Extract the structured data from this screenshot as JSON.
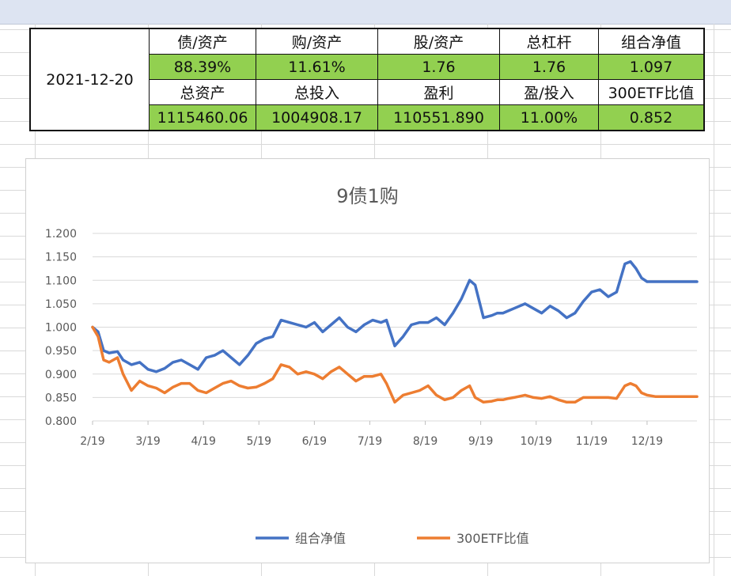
{
  "summary": {
    "date": "2021-12-20",
    "header_row1": [
      "债/资产",
      "购/资产",
      "股/资产",
      "总杠杆",
      "组合净值"
    ],
    "value_row1": [
      "88.39%",
      "11.61%",
      "1.76",
      "1.76",
      "1.097"
    ],
    "header_row2": [
      "总资产",
      "总投入",
      "盈利",
      "盈/投入",
      "300ETF比值"
    ],
    "value_row2": [
      "1115460.06",
      "1004908.17",
      "110551.890",
      "11.00%",
      "0.852"
    ]
  },
  "colors": {
    "value_cell_bg": "#92d050",
    "series_portfolio": "#4472c4",
    "series_etf": "#ed7d31",
    "gridline": "#d9d9d9"
  },
  "chart_data": {
    "type": "line",
    "title": "9债1购",
    "xlabel": "",
    "ylabel": "",
    "x_ticks": [
      "2/19",
      "3/19",
      "4/19",
      "5/19",
      "6/19",
      "7/19",
      "8/19",
      "9/19",
      "10/19",
      "11/19",
      "12/19"
    ],
    "y_ticks": [
      "0.800",
      "0.850",
      "0.900",
      "0.950",
      "1.000",
      "1.050",
      "1.100",
      "1.150",
      "1.200"
    ],
    "ylim": [
      0.8,
      1.2
    ],
    "xlim": [
      0,
      10.9
    ],
    "grid": true,
    "legend_position": "bottom",
    "series": [
      {
        "name": "组合净值",
        "color": "#4472c4",
        "x": [
          0,
          0.1,
          0.2,
          0.3,
          0.45,
          0.55,
          0.7,
          0.85,
          1.0,
          1.15,
          1.3,
          1.45,
          1.6,
          1.75,
          1.9,
          2.05,
          2.2,
          2.35,
          2.5,
          2.65,
          2.8,
          2.95,
          3.1,
          3.25,
          3.4,
          3.55,
          3.7,
          3.85,
          4.0,
          4.15,
          4.3,
          4.45,
          4.6,
          4.75,
          4.9,
          5.05,
          5.2,
          5.3,
          5.45,
          5.6,
          5.75,
          5.9,
          6.05,
          6.2,
          6.35,
          6.5,
          6.65,
          6.8,
          6.9,
          7.05,
          7.2,
          7.3,
          7.4,
          7.5,
          7.6,
          7.8,
          7.95,
          8.1,
          8.25,
          8.4,
          8.55,
          8.7,
          8.85,
          9.0,
          9.15,
          9.3,
          9.45,
          9.6,
          9.7,
          9.8,
          9.9,
          10.0,
          10.15,
          10.3,
          10.4,
          10.5,
          10.65,
          10.8,
          10.9
        ],
        "y": [
          1.0,
          0.99,
          0.95,
          0.945,
          0.948,
          0.93,
          0.92,
          0.925,
          0.91,
          0.905,
          0.912,
          0.925,
          0.93,
          0.92,
          0.91,
          0.935,
          0.94,
          0.95,
          0.935,
          0.92,
          0.94,
          0.965,
          0.975,
          0.98,
          1.015,
          1.01,
          1.005,
          1.0,
          1.01,
          0.99,
          1.005,
          1.02,
          1.0,
          0.99,
          1.005,
          1.015,
          1.01,
          1.015,
          0.96,
          0.98,
          1.005,
          1.01,
          1.01,
          1.02,
          1.005,
          1.03,
          1.06,
          1.1,
          1.09,
          1.02,
          1.025,
          1.03,
          1.03,
          1.035,
          1.04,
          1.05,
          1.04,
          1.03,
          1.045,
          1.035,
          1.02,
          1.03,
          1.055,
          1.075,
          1.08,
          1.065,
          1.075,
          1.135,
          1.14,
          1.125,
          1.105,
          1.097,
          1.097,
          1.097,
          1.097,
          1.097,
          1.097,
          1.097,
          1.097
        ]
      },
      {
        "name": "300ETF比值",
        "color": "#ed7d31",
        "x": [
          0,
          0.1,
          0.2,
          0.3,
          0.45,
          0.55,
          0.7,
          0.85,
          1.0,
          1.15,
          1.3,
          1.45,
          1.6,
          1.75,
          1.9,
          2.05,
          2.2,
          2.35,
          2.5,
          2.65,
          2.8,
          2.95,
          3.1,
          3.25,
          3.4,
          3.55,
          3.7,
          3.85,
          4.0,
          4.15,
          4.3,
          4.45,
          4.6,
          4.75,
          4.9,
          5.05,
          5.2,
          5.3,
          5.45,
          5.6,
          5.75,
          5.9,
          6.05,
          6.2,
          6.35,
          6.5,
          6.65,
          6.8,
          6.9,
          7.05,
          7.2,
          7.3,
          7.4,
          7.5,
          7.6,
          7.8,
          7.95,
          8.1,
          8.25,
          8.4,
          8.55,
          8.7,
          8.85,
          9.0,
          9.15,
          9.3,
          9.45,
          9.6,
          9.7,
          9.8,
          9.9,
          10.0,
          10.15,
          10.3,
          10.4,
          10.5,
          10.65,
          10.8,
          10.9
        ],
        "y": [
          1.0,
          0.98,
          0.93,
          0.925,
          0.935,
          0.9,
          0.865,
          0.885,
          0.875,
          0.87,
          0.86,
          0.872,
          0.88,
          0.88,
          0.865,
          0.86,
          0.87,
          0.88,
          0.885,
          0.875,
          0.87,
          0.872,
          0.88,
          0.89,
          0.92,
          0.915,
          0.9,
          0.905,
          0.9,
          0.89,
          0.905,
          0.915,
          0.9,
          0.885,
          0.895,
          0.895,
          0.9,
          0.88,
          0.84,
          0.855,
          0.86,
          0.865,
          0.875,
          0.855,
          0.845,
          0.85,
          0.865,
          0.875,
          0.85,
          0.84,
          0.842,
          0.845,
          0.845,
          0.848,
          0.85,
          0.855,
          0.85,
          0.848,
          0.852,
          0.845,
          0.84,
          0.84,
          0.85,
          0.85,
          0.85,
          0.85,
          0.848,
          0.875,
          0.88,
          0.875,
          0.86,
          0.855,
          0.852,
          0.852,
          0.852,
          0.852,
          0.852,
          0.852,
          0.852
        ]
      }
    ]
  }
}
